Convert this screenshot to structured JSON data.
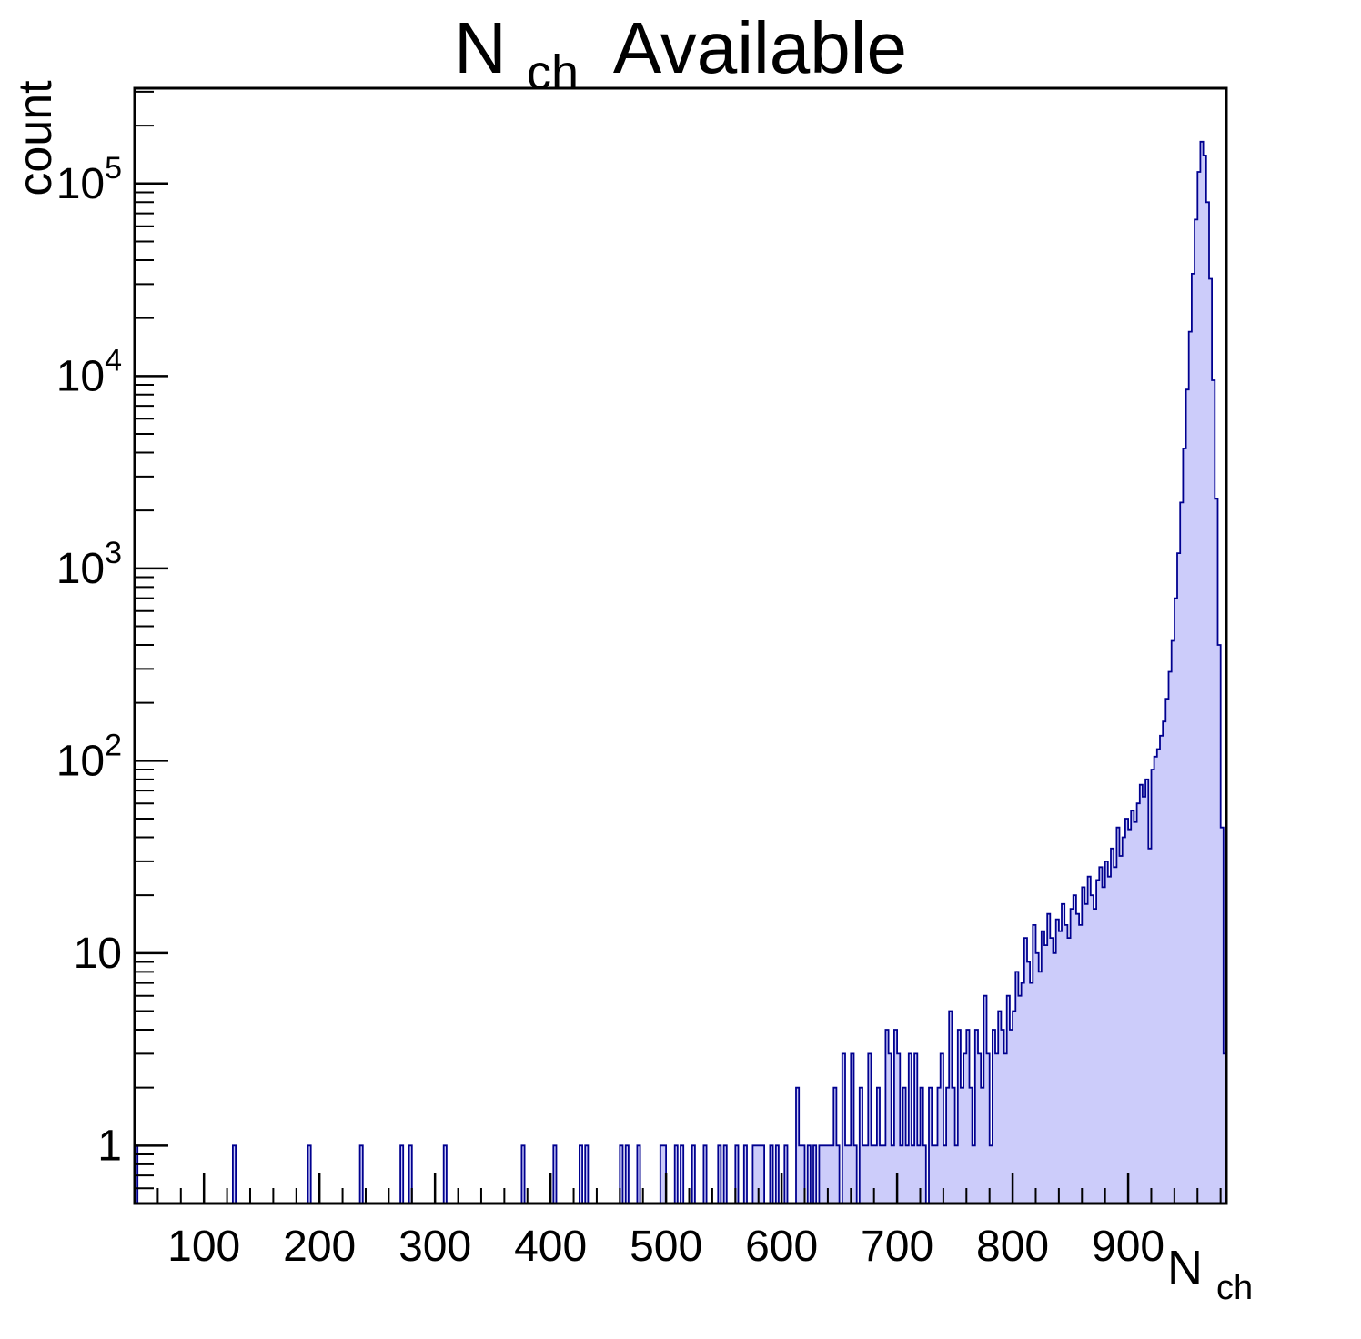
{
  "labels": {
    "title_pre": "N",
    "title_sub": "ch",
    "title_post": "Available",
    "x_title_pre": "N",
    "x_title_sub": "ch",
    "y_title": "count"
  },
  "x_tick_labels": [
    "100",
    "200",
    "300",
    "400",
    "500",
    "600",
    "700",
    "800",
    "900"
  ],
  "y_tick_labels": [
    {
      "base": "1",
      "exp": ""
    },
    {
      "base": "10",
      "exp": ""
    },
    {
      "base": "10",
      "exp": "2"
    },
    {
      "base": "10",
      "exp": "3"
    },
    {
      "base": "10",
      "exp": "4"
    },
    {
      "base": "10",
      "exp": "5"
    }
  ],
  "style": {
    "fill": "#ccccfa",
    "line": "#00008f",
    "frame": "#000000",
    "background": "#ffffff"
  },
  "chart_data": {
    "type": "bar",
    "histogram": true,
    "title": "N_ch Available",
    "xlabel": "N_ch",
    "ylabel": "count",
    "yscale": "log",
    "xlim": [
      40,
      985
    ],
    "ylim": [
      0.5,
      313000
    ],
    "x_start": 40,
    "x_end": 985,
    "bin_width": 2.5,
    "x_major_ticks": [
      100,
      200,
      300,
      400,
      500,
      600,
      700,
      800,
      900
    ],
    "x_minor_start": 60,
    "x_minor_end": 980,
    "x_minor_step": 20,
    "y_major_ticks": [
      1,
      10,
      100,
      1000,
      10000,
      100000
    ],
    "legend": "none",
    "grid": false,
    "bins": [
      [
        40,
        1
      ],
      [
        125,
        1
      ],
      [
        190,
        1
      ],
      [
        235,
        1
      ],
      [
        270,
        1
      ],
      [
        277.5,
        1
      ],
      [
        307.5,
        1
      ],
      [
        375,
        1
      ],
      [
        402.5,
        1
      ],
      [
        425,
        1
      ],
      [
        430,
        1
      ],
      [
        460,
        1
      ],
      [
        465,
        1
      ],
      [
        475,
        1
      ],
      [
        495,
        1
      ],
      [
        497.5,
        1
      ],
      [
        507.5,
        1
      ],
      [
        512.5,
        1
      ],
      [
        522.5,
        1
      ],
      [
        532.5,
        1
      ],
      [
        545,
        1
      ],
      [
        550,
        1
      ],
      [
        560,
        1
      ],
      [
        567.5,
        1
      ],
      [
        575,
        1
      ],
      [
        577.5,
        1
      ],
      [
        580,
        1
      ],
      [
        582.5,
        1
      ],
      [
        590,
        1
      ],
      [
        595,
        1
      ],
      [
        602.5,
        1
      ],
      [
        612.5,
        2
      ],
      [
        615,
        1
      ],
      [
        617.5,
        1
      ],
      [
        622.5,
        1
      ],
      [
        627.5,
        1
      ],
      [
        632.5,
        1
      ],
      [
        635,
        1
      ],
      [
        637.5,
        1
      ],
      [
        640,
        1
      ],
      [
        642.5,
        1
      ],
      [
        645,
        2
      ],
      [
        647.5,
        1
      ],
      [
        652.5,
        3
      ],
      [
        655,
        1
      ],
      [
        657.5,
        1
      ],
      [
        660,
        3
      ],
      [
        662.5,
        1
      ],
      [
        667.5,
        2
      ],
      [
        670,
        1
      ],
      [
        672.5,
        1
      ],
      [
        675,
        3
      ],
      [
        677.5,
        1
      ],
      [
        680,
        1
      ],
      [
        682.5,
        2
      ],
      [
        685,
        1
      ],
      [
        687.5,
        1
      ],
      [
        690,
        4
      ],
      [
        692.5,
        3
      ],
      [
        695,
        1
      ],
      [
        697.5,
        4
      ],
      [
        700,
        3
      ],
      [
        702.5,
        1
      ],
      [
        705,
        2
      ],
      [
        707.5,
        1
      ],
      [
        710,
        3
      ],
      [
        712.5,
        1
      ],
      [
        715,
        3
      ],
      [
        717.5,
        1
      ],
      [
        720,
        2
      ],
      [
        722.5,
        1
      ],
      [
        727.5,
        2
      ],
      [
        730,
        1
      ],
      [
        732.5,
        1
      ],
      [
        735,
        2
      ],
      [
        737.5,
        3
      ],
      [
        740,
        1
      ],
      [
        742.5,
        2
      ],
      [
        745,
        5
      ],
      [
        747.5,
        2
      ],
      [
        750,
        1
      ],
      [
        752.5,
        4
      ],
      [
        755,
        2
      ],
      [
        757.5,
        3
      ],
      [
        760,
        4
      ],
      [
        762.5,
        2
      ],
      [
        765,
        1
      ],
      [
        767.5,
        4
      ],
      [
        770,
        3
      ],
      [
        772.5,
        2
      ],
      [
        775,
        6
      ],
      [
        777.5,
        3
      ],
      [
        780,
        1
      ],
      [
        782.5,
        4
      ],
      [
        785,
        3
      ],
      [
        787.5,
        5
      ],
      [
        790,
        4
      ],
      [
        792.5,
        3
      ],
      [
        795,
        6
      ],
      [
        797.5,
        4
      ],
      [
        800,
        5
      ],
      [
        802.5,
        8
      ],
      [
        805,
        6
      ],
      [
        807.5,
        7
      ],
      [
        810,
        12
      ],
      [
        812.5,
        9
      ],
      [
        815,
        7
      ],
      [
        817.5,
        14
      ],
      [
        820,
        10
      ],
      [
        822.5,
        8
      ],
      [
        825,
        13
      ],
      [
        827.5,
        11
      ],
      [
        830,
        16
      ],
      [
        832.5,
        12
      ],
      [
        835,
        10
      ],
      [
        837.5,
        15
      ],
      [
        840,
        13
      ],
      [
        842.5,
        18
      ],
      [
        845,
        14
      ],
      [
        847.5,
        12
      ],
      [
        850,
        17
      ],
      [
        852.5,
        20
      ],
      [
        855,
        16
      ],
      [
        857.5,
        14
      ],
      [
        860,
        22
      ],
      [
        862.5,
        18
      ],
      [
        865,
        25
      ],
      [
        867.5,
        20
      ],
      [
        870,
        17
      ],
      [
        872.5,
        24
      ],
      [
        875,
        28
      ],
      [
        877.5,
        22
      ],
      [
        880,
        30
      ],
      [
        882.5,
        25
      ],
      [
        885,
        35
      ],
      [
        887.5,
        28
      ],
      [
        890,
        45
      ],
      [
        892.5,
        32
      ],
      [
        895,
        40
      ],
      [
        897.5,
        50
      ],
      [
        900,
        44
      ],
      [
        902.5,
        55
      ],
      [
        905,
        48
      ],
      [
        907.5,
        60
      ],
      [
        910,
        75
      ],
      [
        912.5,
        65
      ],
      [
        915,
        80
      ],
      [
        917.5,
        35
      ],
      [
        920,
        90
      ],
      [
        922.5,
        105
      ],
      [
        925,
        115
      ],
      [
        927.5,
        135
      ],
      [
        930,
        160
      ],
      [
        932.5,
        210
      ],
      [
        935,
        290
      ],
      [
        937.5,
        420
      ],
      [
        940,
        700
      ],
      [
        942.5,
        1200
      ],
      [
        945,
        2200
      ],
      [
        947.5,
        4200
      ],
      [
        950,
        8500
      ],
      [
        952.5,
        17000
      ],
      [
        955,
        34000
      ],
      [
        957.5,
        65000
      ],
      [
        960,
        115000
      ],
      [
        962.5,
        165000
      ],
      [
        965,
        140000
      ],
      [
        967.5,
        80000
      ],
      [
        970,
        32000
      ],
      [
        972.5,
        9500
      ],
      [
        975,
        2300
      ],
      [
        977.5,
        400
      ],
      [
        980,
        45
      ],
      [
        982.5,
        3
      ]
    ]
  }
}
